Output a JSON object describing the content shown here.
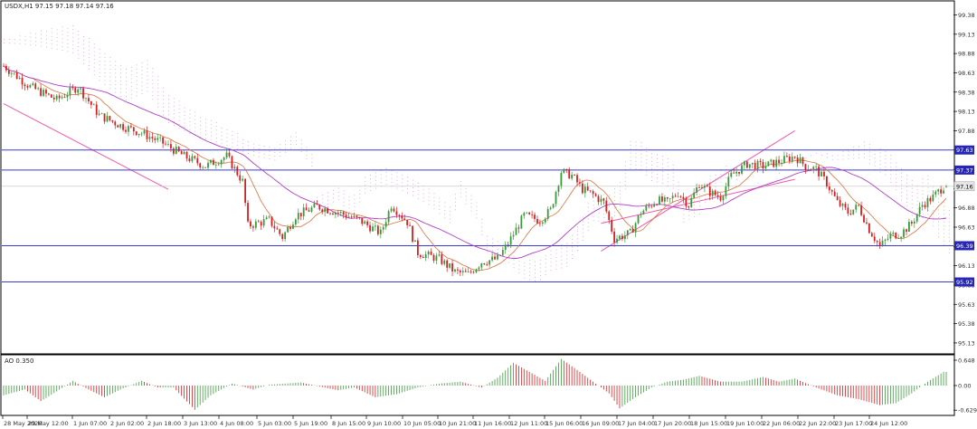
{
  "symbol_header": "USDX,H1  97.15 97.18 97.14 97.16",
  "ao_header": "AO 0.350",
  "price_axis": {
    "min": 95.0,
    "max": 99.55,
    "ticks": [
      "99.38",
      "99.13",
      "98.88",
      "98.63",
      "98.38",
      "98.13",
      "97.88",
      "97.63",
      "97.38",
      "97.13",
      "96.88",
      "96.63",
      "96.38",
      "96.13",
      "95.88",
      "95.63",
      "95.38",
      "95.13"
    ]
  },
  "level_lines": [
    {
      "label": "97.63",
      "value": 97.63
    },
    {
      "label": "97.37",
      "value": 97.37
    },
    {
      "label": "96.39",
      "value": 96.39
    },
    {
      "label": "95.92",
      "value": 95.92
    }
  ],
  "current_price": {
    "label": "97.16",
    "value": 97.16
  },
  "ao_axis": {
    "min": -0.74,
    "max": 0.74,
    "ticks": [
      "0.648",
      "0.00",
      "-0.629"
    ]
  },
  "time_labels": [
    "28 May 2020",
    "29 May 12:00",
    "1 Jun 07:00",
    "2 Jun 02:00",
    "2 Jun 18:00",
    "3 Jun 13:00",
    "4 Jun 08:00",
    "5 Jun 03:00",
    "5 Jun 19:00",
    "8 Jun 15:00",
    "9 Jun 10:00",
    "10 Jun 05:00",
    "10 Jun 21:00",
    "11 Jun 16:00",
    "12 Jun 11:00",
    "15 Jun 06:00",
    "16 Jun 09:00",
    "17 Jun 04:00",
    "17 Jun 20:00",
    "18 Jun 15:00",
    "19 Jun 10:00",
    "22 Jun 06:00",
    "22 Jun 22:00",
    "23 Jun 17:00",
    "24 Jun 12:00"
  ],
  "colors": {
    "bull": "#3a9a3a",
    "bear": "#d42020",
    "level": "#3a3ad8",
    "level_tag_bg": "#2626b8",
    "ma_fast": "#e0703a",
    "ma_slow": "#b040c8",
    "trend": "#f05ab0",
    "cloud_a": "#f0a878",
    "cloud_b": "#d8a0dc",
    "price_tag_bg": "#e6e6e6",
    "axis_text": "#333333"
  },
  "chart_data": {
    "type": "candlestick",
    "symbol": "USDX",
    "timeframe": "H1",
    "ohlc_last": {
      "open": 97.15,
      "high": 97.18,
      "low": 97.14,
      "close": 97.16
    },
    "price_path": [
      [
        0,
        98.72
      ],
      [
        10,
        98.45
      ],
      [
        20,
        98.28
      ],
      [
        28,
        98.45
      ],
      [
        36,
        98.08
      ],
      [
        44,
        97.95
      ],
      [
        52,
        97.85
      ],
      [
        60,
        97.72
      ],
      [
        68,
        97.55
      ],
      [
        76,
        97.42
      ],
      [
        84,
        97.55
      ],
      [
        90,
        97.22
      ],
      [
        92,
        96.65
      ],
      [
        100,
        96.72
      ],
      [
        105,
        96.5
      ],
      [
        110,
        96.78
      ],
      [
        118,
        96.9
      ],
      [
        126,
        96.82
      ],
      [
        134,
        96.72
      ],
      [
        142,
        96.55
      ],
      [
        146,
        96.92
      ],
      [
        152,
        96.7
      ],
      [
        156,
        96.3
      ],
      [
        164,
        96.22
      ],
      [
        170,
        96.05
      ],
      [
        175,
        96.02
      ],
      [
        180,
        96.18
      ],
      [
        186,
        96.22
      ],
      [
        190,
        96.42
      ],
      [
        196,
        96.78
      ],
      [
        202,
        96.72
      ],
      [
        206,
        96.85
      ],
      [
        210,
        97.35
      ],
      [
        214,
        97.3
      ],
      [
        218,
        97.12
      ],
      [
        222,
        97.05
      ],
      [
        226,
        96.95
      ],
      [
        230,
        96.48
      ],
      [
        236,
        96.55
      ],
      [
        240,
        96.82
      ],
      [
        246,
        96.98
      ],
      [
        250,
        96.95
      ],
      [
        254,
        97.08
      ],
      [
        258,
        96.92
      ],
      [
        262,
        97.2
      ],
      [
        266,
        97.08
      ],
      [
        270,
        97.02
      ],
      [
        274,
        97.3
      ],
      [
        280,
        97.45
      ],
      [
        286,
        97.42
      ],
      [
        292,
        97.48
      ],
      [
        298,
        97.55
      ],
      [
        302,
        97.42
      ],
      [
        306,
        97.38
      ],
      [
        310,
        97.2
      ],
      [
        314,
        96.95
      ],
      [
        318,
        96.82
      ],
      [
        322,
        96.9
      ],
      [
        326,
        96.6
      ],
      [
        330,
        96.38
      ],
      [
        334,
        96.52
      ],
      [
        338,
        96.55
      ],
      [
        342,
        96.68
      ],
      [
        346,
        96.92
      ],
      [
        350,
        97.02
      ],
      [
        354,
        97.16
      ]
    ],
    "series": [
      {
        "name": "USDX",
        "kind": "candles"
      },
      {
        "kind": "moving_average_fast"
      },
      {
        "kind": "moving_average_slow"
      },
      {
        "kind": "ichimoku_cloud"
      }
    ],
    "trendlines": [
      {
        "from": [
          0,
          98.23
        ],
        "to": [
          62,
          97.12
        ]
      },
      {
        "from": [
          225,
          96.32
        ],
        "to": [
          298,
          97.88
        ]
      },
      {
        "from": [
          225,
          96.68
        ],
        "to": [
          298,
          97.25
        ]
      }
    ],
    "horizontal_levels": [
      97.63,
      97.37,
      96.39,
      95.92
    ],
    "ao": {
      "name": "AO",
      "value": 0.35,
      "path": [
        [
          0,
          -0.25
        ],
        [
          8,
          -0.1
        ],
        [
          14,
          -0.4
        ],
        [
          20,
          -0.15
        ],
        [
          26,
          0.12
        ],
        [
          32,
          -0.1
        ],
        [
          38,
          -0.3
        ],
        [
          44,
          -0.1
        ],
        [
          52,
          0.12
        ],
        [
          58,
          -0.05
        ],
        [
          64,
          -0.05
        ],
        [
          72,
          -0.62
        ],
        [
          78,
          -0.25
        ],
        [
          86,
          0.05
        ],
        [
          94,
          -0.1
        ],
        [
          100,
          0.02
        ],
        [
          112,
          0.08
        ],
        [
          120,
          -0.04
        ],
        [
          126,
          -0.12
        ],
        [
          132,
          -0.05
        ],
        [
          140,
          -0.3
        ],
        [
          148,
          -0.22
        ],
        [
          156,
          -0.05
        ],
        [
          164,
          0.05
        ],
        [
          172,
          0.1
        ],
        [
          180,
          -0.05
        ],
        [
          186,
          0.2
        ],
        [
          192,
          0.58
        ],
        [
          198,
          0.35
        ],
        [
          204,
          0.12
        ],
        [
          210,
          0.68
        ],
        [
          216,
          0.4
        ],
        [
          222,
          0.1
        ],
        [
          228,
          -0.2
        ],
        [
          232,
          -0.58
        ],
        [
          238,
          -0.3
        ],
        [
          244,
          -0.05
        ],
        [
          250,
          0.1
        ],
        [
          256,
          0.15
        ],
        [
          262,
          0.25
        ],
        [
          270,
          0.1
        ],
        [
          278,
          0.1
        ],
        [
          286,
          0.22
        ],
        [
          292,
          0.1
        ],
        [
          298,
          0.18
        ],
        [
          306,
          -0.05
        ],
        [
          314,
          -0.25
        ],
        [
          322,
          -0.35
        ],
        [
          330,
          -0.5
        ],
        [
          336,
          -0.45
        ],
        [
          342,
          -0.2
        ],
        [
          348,
          0.1
        ],
        [
          354,
          0.35
        ]
      ]
    }
  }
}
